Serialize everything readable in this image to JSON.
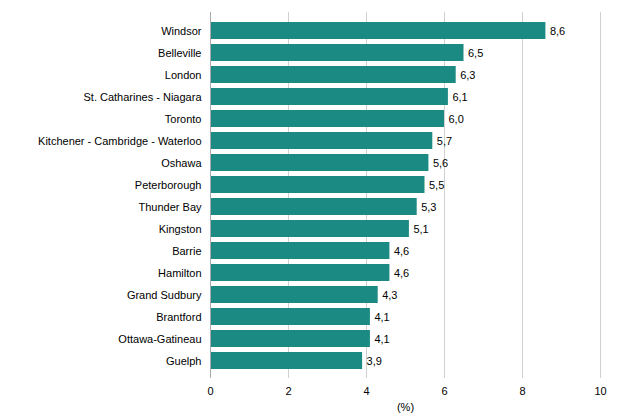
{
  "chart_data": {
    "type": "bar",
    "orientation": "horizontal",
    "categories": [
      "Guelph",
      "Ottawa-Gatineau",
      "Brantford",
      "Grand Sudbury",
      "Hamilton",
      "Barrie",
      "Kingston",
      "Thunder Bay",
      "Peterborough",
      "Oshawa",
      "Kitchener - Cambridge - Waterloo",
      "Toronto",
      "St. Catharines - Niagara",
      "London",
      "Belleville",
      "Windsor"
    ],
    "values": [
      3.9,
      4.1,
      4.1,
      4.3,
      4.6,
      4.6,
      5.1,
      5.3,
      5.5,
      5.6,
      5.7,
      6.0,
      6.1,
      6.3,
      6.5,
      8.6
    ],
    "value_labels": [
      "3,9",
      "4,1",
      "4,1",
      "4,3",
      "4,6",
      "4,6",
      "5,1",
      "5,3",
      "5,5",
      "5,6",
      "5,7",
      "6,0",
      "6,1",
      "6,3",
      "6,5",
      "8,6"
    ],
    "data_labels": true,
    "color": "#1a8a82",
    "xlabel": "(%)",
    "xlim": [
      0,
      10
    ],
    "xticks": [
      0,
      2,
      4,
      6,
      8,
      10
    ],
    "grid": true
  }
}
